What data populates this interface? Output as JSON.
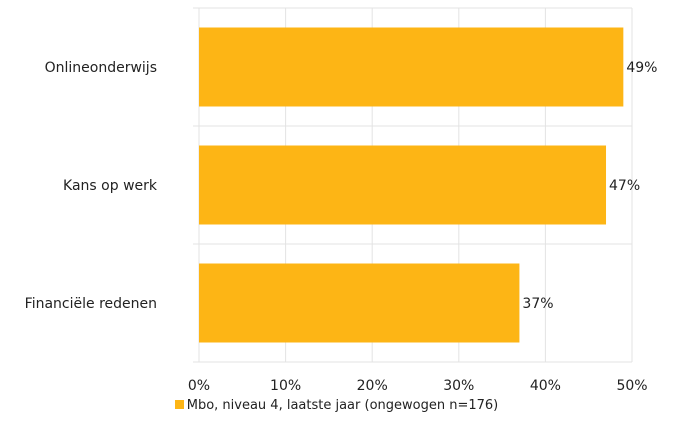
{
  "chart_data": {
    "type": "bar",
    "orientation": "horizontal",
    "categories": [
      "Onlineonderwijs",
      "Kans op werk",
      "Financiële redenen"
    ],
    "series": [
      {
        "name": "Mbo, niveau 4, laatste jaar (ongewogen n=176)",
        "values": [
          49,
          47,
          37
        ],
        "labels": [
          "49%",
          "47%",
          "37%"
        ],
        "color": "#FDB515"
      }
    ],
    "xlim": [
      0,
      50
    ],
    "ticks": [
      0,
      10,
      20,
      30,
      40,
      50
    ],
    "tick_labels": [
      "0%",
      "10%",
      "20%",
      "30%",
      "40%",
      "50%"
    ],
    "grid": true,
    "legend_position": "bottom",
    "title": "",
    "xlabel": "",
    "ylabel": ""
  }
}
